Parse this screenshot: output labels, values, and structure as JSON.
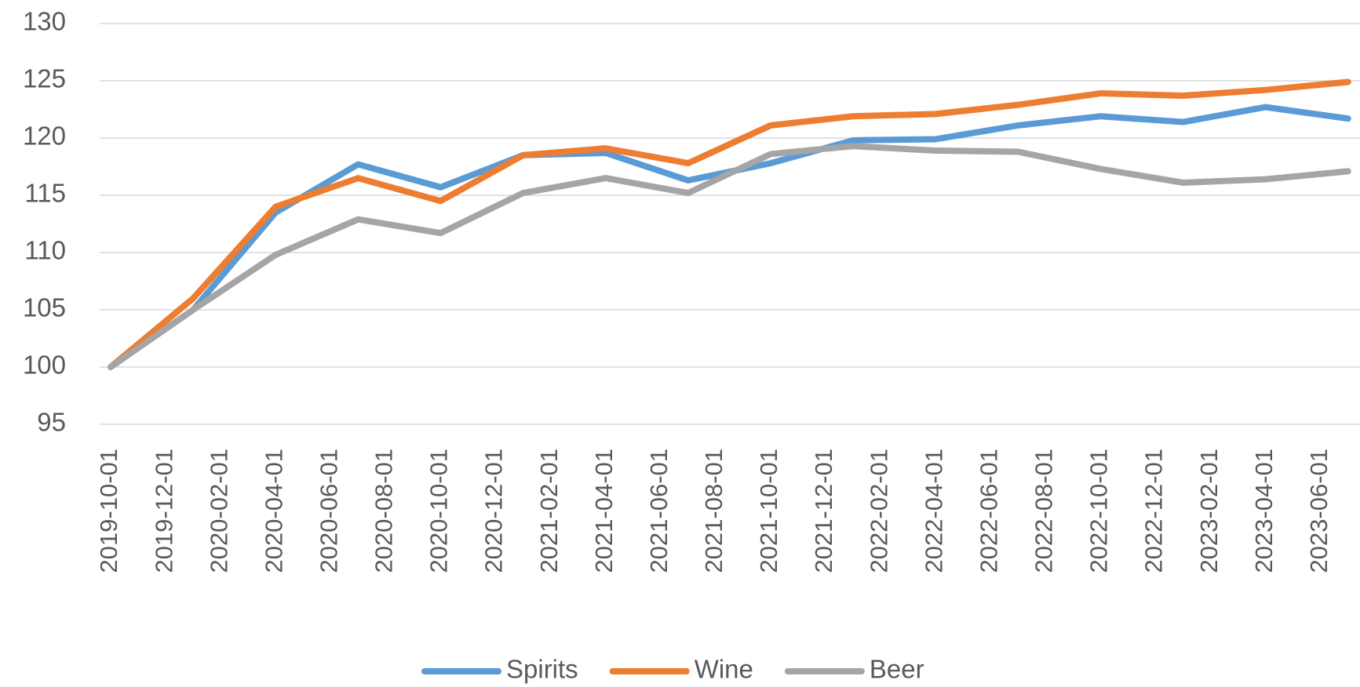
{
  "chart_data": {
    "type": "line",
    "x": [
      "2019-10-01",
      "2020-01-01",
      "2020-04-01",
      "2020-07-01",
      "2020-10-01",
      "2021-01-01",
      "2021-04-01",
      "2021-07-01",
      "2021-10-01",
      "2022-01-01",
      "2022-04-01",
      "2022-07-01",
      "2022-10-01",
      "2023-01-01",
      "2023-04-01",
      "2023-07-01"
    ],
    "xticks": [
      "2019-10-01",
      "2019-12-01",
      "2020-02-01",
      "2020-04-01",
      "2020-06-01",
      "2020-08-01",
      "2020-10-01",
      "2020-12-01",
      "2021-02-01",
      "2021-04-01",
      "2021-06-01",
      "2021-08-01",
      "2021-10-01",
      "2021-12-01",
      "2022-02-01",
      "2022-04-01",
      "2022-06-01",
      "2022-08-01",
      "2022-10-01",
      "2022-12-01",
      "2023-02-01",
      "2023-04-01",
      "2023-06-01"
    ],
    "series": [
      {
        "name": "Spirits",
        "color": "#5b9bd5",
        "values": [
          100,
          105,
          113.5,
          117.7,
          115.7,
          118.5,
          118.7,
          116.3,
          117.8,
          119.8,
          119.9,
          121.1,
          121.9,
          121.4,
          122.7,
          121.7
        ]
      },
      {
        "name": "Wine",
        "color": "#ed7d31",
        "values": [
          100,
          106,
          114,
          116.5,
          114.5,
          118.5,
          119.1,
          117.8,
          121.1,
          121.9,
          122.1,
          122.9,
          123.9,
          123.7,
          124.2,
          124.9
        ]
      },
      {
        "name": "Beer",
        "color": "#a5a5a5",
        "values": [
          100,
          105,
          109.8,
          112.9,
          111.7,
          115.2,
          116.5,
          115.2,
          118.6,
          119.3,
          118.9,
          118.8,
          117.3,
          116.1,
          116.4,
          117.1
        ]
      }
    ],
    "ylim": [
      95,
      130
    ],
    "yticks": [
      95,
      100,
      105,
      110,
      115,
      120,
      125,
      130
    ],
    "grid": true,
    "legend": "bottom"
  }
}
